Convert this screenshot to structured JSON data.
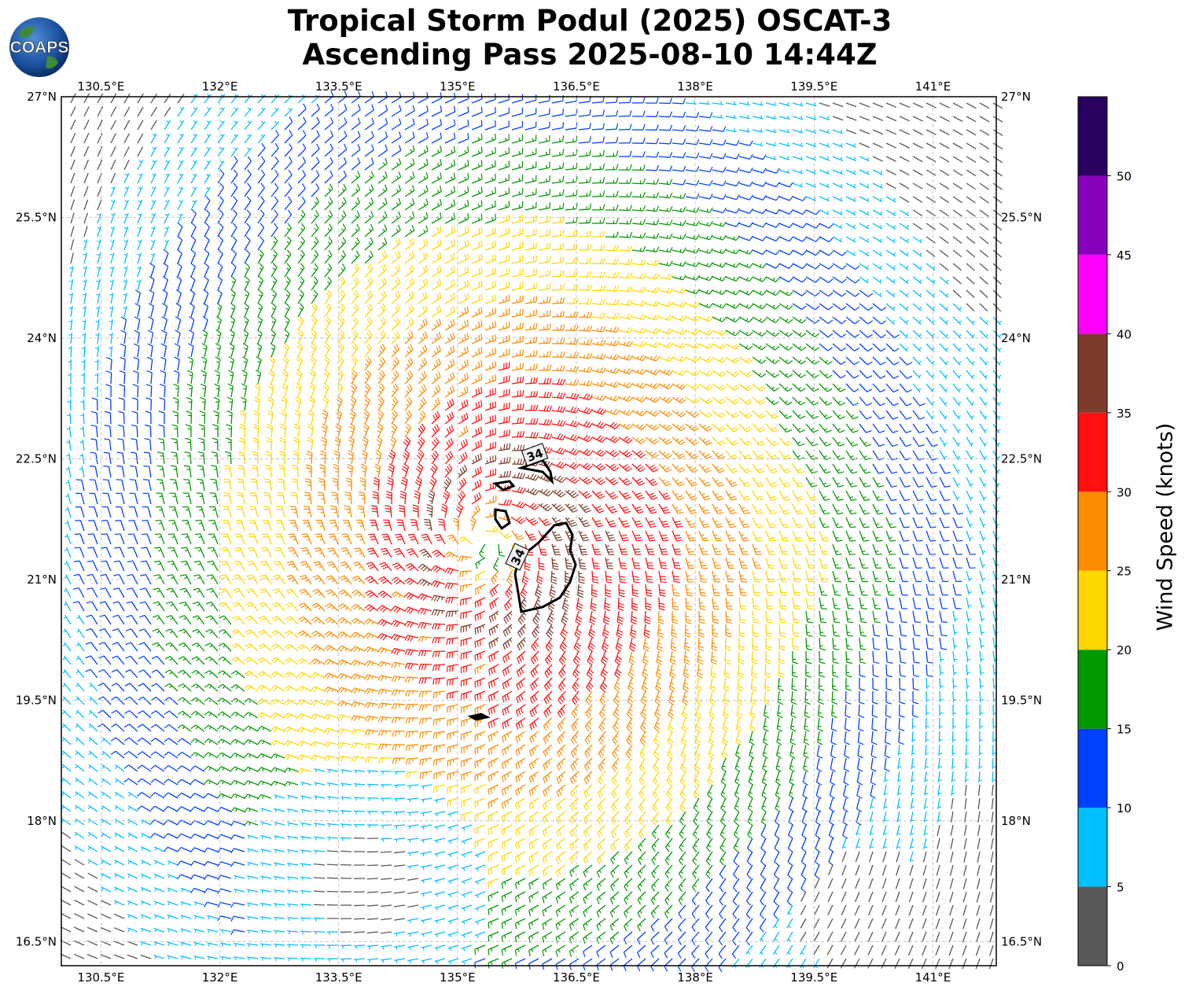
{
  "title_line1": "Tropical Storm Podul (2025) OSCAT-3",
  "title_line2": "Ascending Pass 2025-08-10 14:44Z",
  "logo_text": "COAPS",
  "map": {
    "lon_ticks": [
      "130.5°E",
      "132°E",
      "133.5°E",
      "135°E",
      "136.5°E",
      "138°E",
      "139.5°E",
      "141°E"
    ],
    "lat_ticks": [
      "27°N",
      "25.5°N",
      "24°N",
      "22.5°N",
      "21°N",
      "19.5°N",
      "18°N",
      "16.5°N"
    ],
    "lon_range": [
      130.0,
      141.8
    ],
    "lat_range": [
      16.2,
      27.0
    ],
    "storm_center_approx": {
      "lon": 135.3,
      "lat": 21.5
    },
    "contour_label": "34",
    "contour_labels": [
      "34",
      "34"
    ]
  },
  "colorbar": {
    "label": "Wind Speed (knots)",
    "tick_labels": [
      "0",
      "5",
      "10",
      "15",
      "20",
      "25",
      "30",
      "35",
      "40",
      "45",
      "50"
    ],
    "bins": [
      {
        "min": 0,
        "max": 5,
        "color": "#595959"
      },
      {
        "min": 5,
        "max": 10,
        "color": "#00bfff"
      },
      {
        "min": 10,
        "max": 15,
        "color": "#0040ff"
      },
      {
        "min": 15,
        "max": 20,
        "color": "#009900"
      },
      {
        "min": 20,
        "max": 25,
        "color": "#ffd700"
      },
      {
        "min": 25,
        "max": 30,
        "color": "#ff8c00"
      },
      {
        "min": 30,
        "max": 35,
        "color": "#ff1111"
      },
      {
        "min": 35,
        "max": 40,
        "color": "#7f3b2a"
      },
      {
        "min": 40,
        "max": 45,
        "color": "#ff00ff"
      },
      {
        "min": 45,
        "max": 50,
        "color": "#8800bb"
      },
      {
        "min": 50,
        "max": 55,
        "color": "#2a0060"
      }
    ]
  }
}
